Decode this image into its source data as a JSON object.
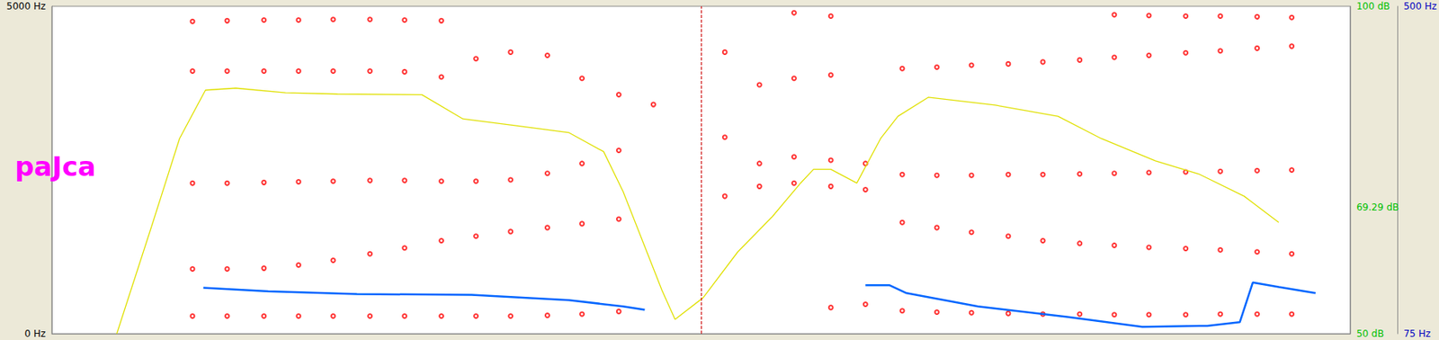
{
  "chart_data": {
    "type": "scatter",
    "title": "paJca",
    "xlim": [
      0,
      0.6
    ],
    "ylim": [
      0,
      5000
    ],
    "yticks": [
      {
        "value": 0,
        "label": "0 Hz"
      },
      {
        "value": 5000,
        "label": "5000 Hz"
      }
    ],
    "y2lim": [
      50,
      100
    ],
    "y2ticks": [
      {
        "value": 50,
        "label": "50 dB"
      },
      {
        "value": 69.29,
        "label": "69.29 dB"
      },
      {
        "value": 100,
        "label": "100 dB"
      }
    ],
    "y3lim": [
      75,
      500
    ],
    "y3ticks": [
      {
        "value": 75,
        "label": "75 Hz"
      },
      {
        "value": 500,
        "label": "500 Hz"
      }
    ],
    "grid": false,
    "tick_labels": "y",
    "cursor": 0.299,
    "x": [
      0.065,
      0.081,
      0.098,
      0.114,
      0.13,
      0.147,
      0.163,
      0.18,
      0.196,
      0.212,
      0.229,
      0.245,
      0.262,
      0.278,
      0.294,
      0.311,
      0.327,
      0.343,
      0.36,
      0.376,
      0.393,
      0.409,
      0.425,
      0.442,
      0.458,
      0.475,
      0.491,
      0.507,
      0.524,
      0.54,
      0.557,
      0.573
    ],
    "series": [
      {
        "type": "scatter",
        "color": "#ff0000",
        "marker": "circle",
        "values": [
          270,
          270,
          270,
          270,
          270,
          270,
          270,
          270,
          270,
          270,
          280,
          300,
          340,
          null,
          null,
          null,
          null,
          null,
          400,
          450,
          350,
          330,
          320,
          310,
          300,
          300,
          290,
          290,
          290,
          300,
          300,
          300
        ]
      },
      {
        "type": "scatter",
        "color": "#ff0000",
        "marker": "circle",
        "values": [
          990,
          990,
          1000,
          1050,
          1120,
          1220,
          1310,
          1420,
          1490,
          1560,
          1620,
          1680,
          1750,
          null,
          null,
          2100,
          2250,
          2300,
          2250,
          2200,
          1700,
          1620,
          1550,
          1490,
          1420,
          1380,
          1350,
          1320,
          1300,
          1280,
          1250,
          1220
        ]
      },
      {
        "type": "scatter",
        "color": "#ff0000",
        "marker": "circle",
        "values": [
          2300,
          2300,
          2310,
          2320,
          2330,
          2340,
          2340,
          2330,
          2330,
          2350,
          2450,
          2600,
          2800,
          3500,
          null,
          3000,
          2600,
          2700,
          2650,
          2600,
          2430,
          2420,
          2420,
          2430,
          2430,
          2440,
          2450,
          2460,
          2470,
          2480,
          2490,
          2500
        ]
      },
      {
        "type": "scatter",
        "color": "#ff0000",
        "marker": "circle",
        "values": [
          4010,
          4010,
          4010,
          4010,
          4010,
          4010,
          4000,
          3920,
          4200,
          4300,
          4250,
          3900,
          3650,
          null,
          null,
          4300,
          3800,
          3900,
          3950,
          null,
          4050,
          4070,
          4100,
          4120,
          4150,
          4180,
          4220,
          4250,
          4290,
          4320,
          4360,
          4390
        ]
      },
      {
        "type": "scatter",
        "color": "#ff0000",
        "marker": "circle",
        "values": [
          4770,
          4780,
          4790,
          4790,
          4800,
          4800,
          4790,
          4780,
          null,
          null,
          null,
          null,
          null,
          null,
          null,
          null,
          null,
          4900,
          4850,
          null,
          null,
          null,
          null,
          null,
          null,
          null,
          4870,
          4860,
          4850,
          4850,
          4840,
          4830
        ]
      },
      {
        "type": "line",
        "color": "#e0e000",
        "axis": "y2",
        "line_style": "solid",
        "x": [
          0.03,
          0.046,
          0.059,
          0.071,
          0.085,
          0.108,
          0.132,
          0.171,
          0.19,
          0.214,
          0.239,
          0.255,
          0.264,
          0.272,
          0.282,
          0.288,
          0.301,
          0.317,
          0.333,
          0.346,
          0.352,
          0.36,
          0.372,
          0.383,
          0.391,
          0.405,
          0.436,
          0.465,
          0.485,
          0.51,
          0.53,
          0.551,
          0.567
        ],
        "values": [
          50.0,
          66.3,
          79.8,
          87.2,
          87.5,
          86.8,
          86.6,
          86.5,
          82.8,
          81.8,
          80.7,
          77.8,
          71.7,
          65.0,
          56.6,
          52.2,
          55.5,
          62.5,
          67.9,
          73.0,
          75.1,
          75.1,
          73.0,
          79.8,
          83.2,
          86.1,
          84.9,
          83.2,
          79.8,
          76.4,
          74.4,
          71.0,
          67.0
        ]
      },
      {
        "type": "line",
        "color": "#0066ff",
        "axis": "y3",
        "line_style": "solid",
        "x": [
          0.07,
          0.1,
          0.141,
          0.194,
          0.239,
          0.264,
          0.274,
          0.285,
          0.376,
          0.387,
          0.395,
          0.428,
          0.469,
          0.504,
          0.534,
          0.549,
          0.555,
          0.567,
          0.584
        ],
        "values": [
          134.6,
          130.0,
          126.5,
          125.4,
          118.5,
          110.5,
          106.0,
          null,
          138.0,
          138.0,
          127.7,
          110.5,
          96.8,
          84.0,
          85.3,
          90.0,
          141.4,
          135.7,
          127.7
        ]
      }
    ]
  }
}
